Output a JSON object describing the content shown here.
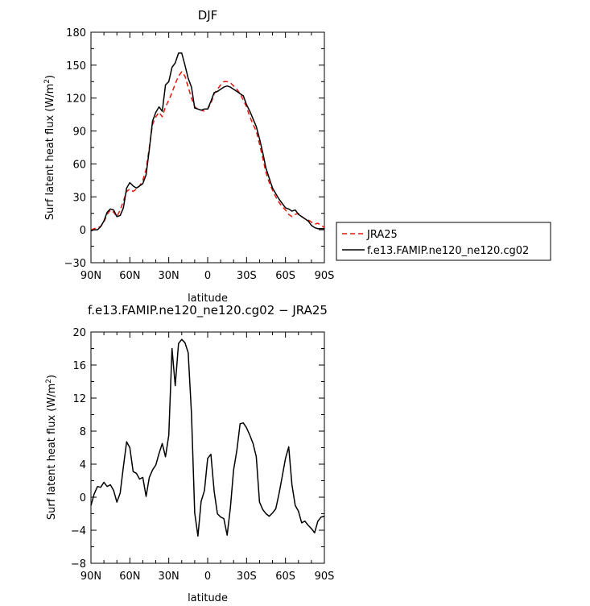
{
  "chart_data": [
    {
      "type": "line",
      "title": "DJF",
      "xlabel": "latitude",
      "ylabel": "Surf latent heat flux (W/m²)",
      "ylabel_main": "Surf latent heat flux (W/m",
      "ylabel_sup": "2",
      "ylabel_tail": ")",
      "xlim": [
        90,
        -90
      ],
      "ylim": [
        -30,
        180
      ],
      "xticks": [
        90,
        60,
        30,
        0,
        -30,
        -60,
        -90
      ],
      "xticklabels": [
        "90N",
        "60N",
        "30N",
        "0",
        "30S",
        "60S",
        "90S"
      ],
      "yticks": [
        -30,
        0,
        30,
        60,
        90,
        120,
        150,
        180
      ],
      "yticklabels": [
        "−30",
        "0",
        "30",
        "60",
        "90",
        "120",
        "150",
        "180"
      ],
      "legend": {
        "placement": "right",
        "entries": [
          "JRA25",
          "f.e13.FAMIP.ne120_ne120.cg02"
        ]
      },
      "series": [
        {
          "name": "JRA25",
          "color": "#e8160c",
          "dash": "dashed",
          "x": [
            90,
            87.5,
            85,
            82.5,
            80,
            77.5,
            75,
            72.5,
            70,
            67.5,
            65,
            62.5,
            60,
            57.5,
            55,
            52.5,
            50,
            47.5,
            45,
            42.5,
            40,
            37.5,
            35,
            32.5,
            30,
            27.5,
            25,
            22.5,
            20,
            17.5,
            15,
            12.5,
            10,
            7.5,
            5,
            2.5,
            0,
            -2.5,
            -5,
            -7.5,
            -10,
            -12.5,
            -15,
            -17.5,
            -20,
            -22.5,
            -25,
            -27.5,
            -30,
            -32.5,
            -35,
            -37.5,
            -40,
            -42.5,
            -45,
            -47.5,
            -50,
            -52.5,
            -55,
            -57.5,
            -60,
            -62.5,
            -65,
            -67.5,
            -70,
            -72.5,
            -75,
            -77.5,
            -80,
            -82.5,
            -85,
            -87.5,
            -90
          ],
          "y": [
            0,
            1,
            2,
            3,
            7,
            14,
            18,
            16,
            12,
            18,
            26,
            35,
            37,
            35,
            37,
            40,
            45,
            55,
            75,
            96,
            103,
            107,
            103,
            112,
            118,
            125,
            133,
            140,
            144,
            140,
            130,
            120,
            112,
            110,
            109,
            108,
            110,
            115,
            124,
            128,
            132,
            135,
            135,
            134,
            131,
            128,
            124,
            118,
            112,
            103,
            96,
            90,
            78,
            65,
            52,
            43,
            36,
            30,
            25,
            21,
            18,
            14,
            12,
            14,
            15,
            12,
            10,
            9,
            7,
            5,
            6,
            4,
            2
          ]
        },
        {
          "name": "f.e13.FAMIP.ne120_ne120.cg02",
          "color": "#000000",
          "dash": "solid",
          "x": [
            90,
            87.5,
            85,
            82.5,
            80,
            77.5,
            75,
            72.5,
            70,
            67.5,
            65,
            62.5,
            60,
            57.5,
            55,
            52.5,
            50,
            47.5,
            45,
            42.5,
            40,
            37.5,
            35,
            32.5,
            30,
            27.5,
            25,
            22.5,
            20,
            17.5,
            15,
            12.5,
            10,
            7.5,
            5,
            2.5,
            0,
            -2.5,
            -5,
            -7.5,
            -10,
            -12.5,
            -15,
            -17.5,
            -20,
            -22.5,
            -25,
            -27.5,
            -30,
            -32.5,
            -35,
            -37.5,
            -40,
            -42.5,
            -45,
            -47.5,
            -50,
            -52.5,
            -55,
            -57.5,
            -60,
            -62.5,
            -65,
            -67.5,
            -70,
            -72.5,
            -75,
            -77.5,
            -80,
            -82.5,
            -85,
            -87.5,
            -90
          ],
          "y": [
            -1,
            0,
            0,
            3,
            8,
            16,
            19,
            18,
            12,
            13,
            20,
            38,
            43,
            40,
            38,
            40,
            42,
            50,
            73,
            99,
            107,
            112,
            108,
            132,
            135,
            148,
            152,
            161,
            161,
            150,
            138,
            130,
            111,
            110,
            109,
            110,
            110,
            117,
            125,
            126,
            128,
            130,
            131,
            130,
            128,
            126,
            124,
            122,
            114,
            108,
            101,
            94,
            83,
            70,
            56,
            47,
            38,
            33,
            28,
            24,
            20,
            19,
            17,
            18,
            14,
            12,
            10,
            8,
            4,
            2,
            1,
            1,
            1
          ]
        }
      ]
    },
    {
      "type": "line",
      "title": "f.e13.FAMIP.ne120_ne120.cg02 − JRA25",
      "xlabel": "latitude",
      "ylabel": "Surf latent heat flux (W/m²)",
      "ylabel_main": "Surf latent heat flux (W/m",
      "ylabel_sup": "2",
      "ylabel_tail": ")",
      "xlim": [
        90,
        -90
      ],
      "ylim": [
        -8,
        20
      ],
      "xticks": [
        90,
        60,
        30,
        0,
        -30,
        -60,
        -90
      ],
      "xticklabels": [
        "90N",
        "60N",
        "30N",
        "0",
        "30S",
        "60S",
        "90S"
      ],
      "yticks": [
        -8,
        -4,
        0,
        4,
        8,
        12,
        16,
        20
      ],
      "yticklabels": [
        "−8",
        "−4",
        "0",
        "4",
        "8",
        "12",
        "16",
        "20"
      ],
      "series": [
        {
          "name": "f.e13.FAMIP.ne120_ne120.cg02 − JRA25",
          "color": "#000000",
          "dash": "solid",
          "x": [
            90,
            87.5,
            85,
            82.5,
            80,
            77.5,
            75,
            72.5,
            70,
            67.5,
            65,
            62.5,
            60,
            57.5,
            55,
            52.5,
            50,
            47.5,
            45,
            42.5,
            40,
            37.5,
            35,
            32.5,
            30,
            27.5,
            25,
            22.5,
            20,
            17.5,
            15,
            12.5,
            10,
            7.5,
            5,
            2.5,
            0,
            -2.5,
            -5,
            -7.5,
            -10,
            -12.5,
            -15,
            -17.5,
            -20,
            -22.5,
            -25,
            -27.5,
            -30,
            -32.5,
            -35,
            -37.5,
            -40,
            -42.5,
            -45,
            -47.5,
            -50,
            -52.5,
            -55,
            -57.5,
            -60,
            -62.5,
            -65,
            -67.5,
            -70,
            -72.5,
            -75,
            -77.5,
            -80,
            -82.5,
            -85,
            -87.5,
            -90
          ],
          "y": [
            -1,
            0.4,
            1.3,
            1.2,
            1.8,
            1.3,
            1.5,
            0.8,
            -0.6,
            0.5,
            3.7,
            6.7,
            6.0,
            3.1,
            2.9,
            2.2,
            2.4,
            0.1,
            2.4,
            3.3,
            3.9,
            5.3,
            6.5,
            4.9,
            7.5,
            18.0,
            13.5,
            18.6,
            19.1,
            18.7,
            17.5,
            10.1,
            -1.9,
            -4.7,
            -0.5,
            0.8,
            4.7,
            5.2,
            0.7,
            -2.0,
            -2.4,
            -2.6,
            -4.6,
            -1.3,
            3.3,
            5.7,
            8.9,
            9.0,
            8.4,
            7.5,
            6.5,
            4.9,
            -0.6,
            -1.5,
            -2.0,
            -2.3,
            -1.9,
            -1.4,
            0.4,
            2.5,
            4.7,
            6.1,
            1.5,
            -1.0,
            -1.7,
            -3.1,
            -2.9,
            -3.4,
            -3.8,
            -4.3,
            -2.9,
            -2.4,
            -2.3
          ]
        }
      ]
    }
  ]
}
